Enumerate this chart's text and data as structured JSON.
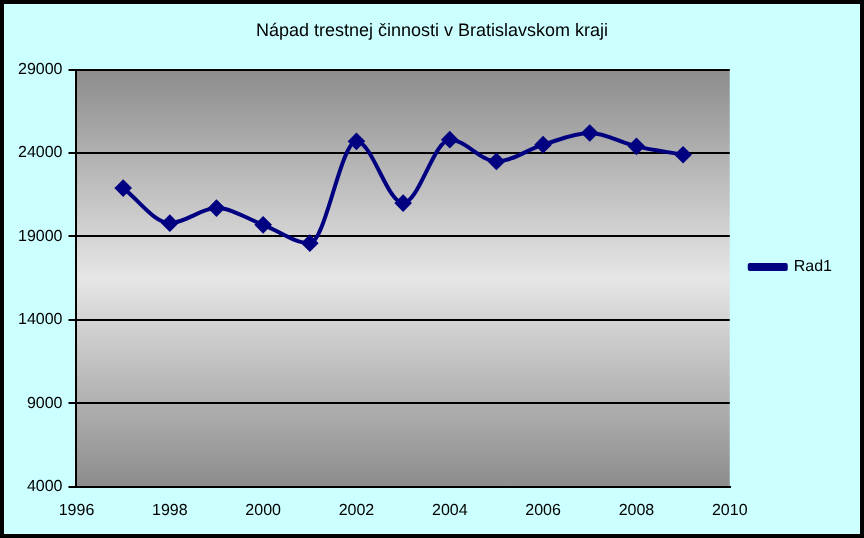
{
  "chart_data": {
    "type": "line",
    "title": "Nápad trestnej činnosti v Bratislavskom kraji",
    "x": [
      1997,
      1998,
      1999,
      2000,
      2001,
      2002,
      2003,
      2004,
      2005,
      2006,
      2007,
      2008,
      2009
    ],
    "series": [
      {
        "name": "Rad1",
        "color": "#000080",
        "values": [
          21900,
          19800,
          20700,
          19700,
          18600,
          24700,
          21000,
          24800,
          23500,
          24500,
          25200,
          24400,
          23900
        ]
      }
    ],
    "xlim": [
      1996,
      2010
    ],
    "xticks": [
      1996,
      1998,
      2000,
      2002,
      2004,
      2006,
      2008,
      2010
    ],
    "ylim": [
      4000,
      29000
    ],
    "yticks": [
      4000,
      9000,
      14000,
      19000,
      24000,
      29000
    ],
    "grid": "y",
    "legend": "right",
    "marker": "diamond",
    "line_style": "solid"
  }
}
